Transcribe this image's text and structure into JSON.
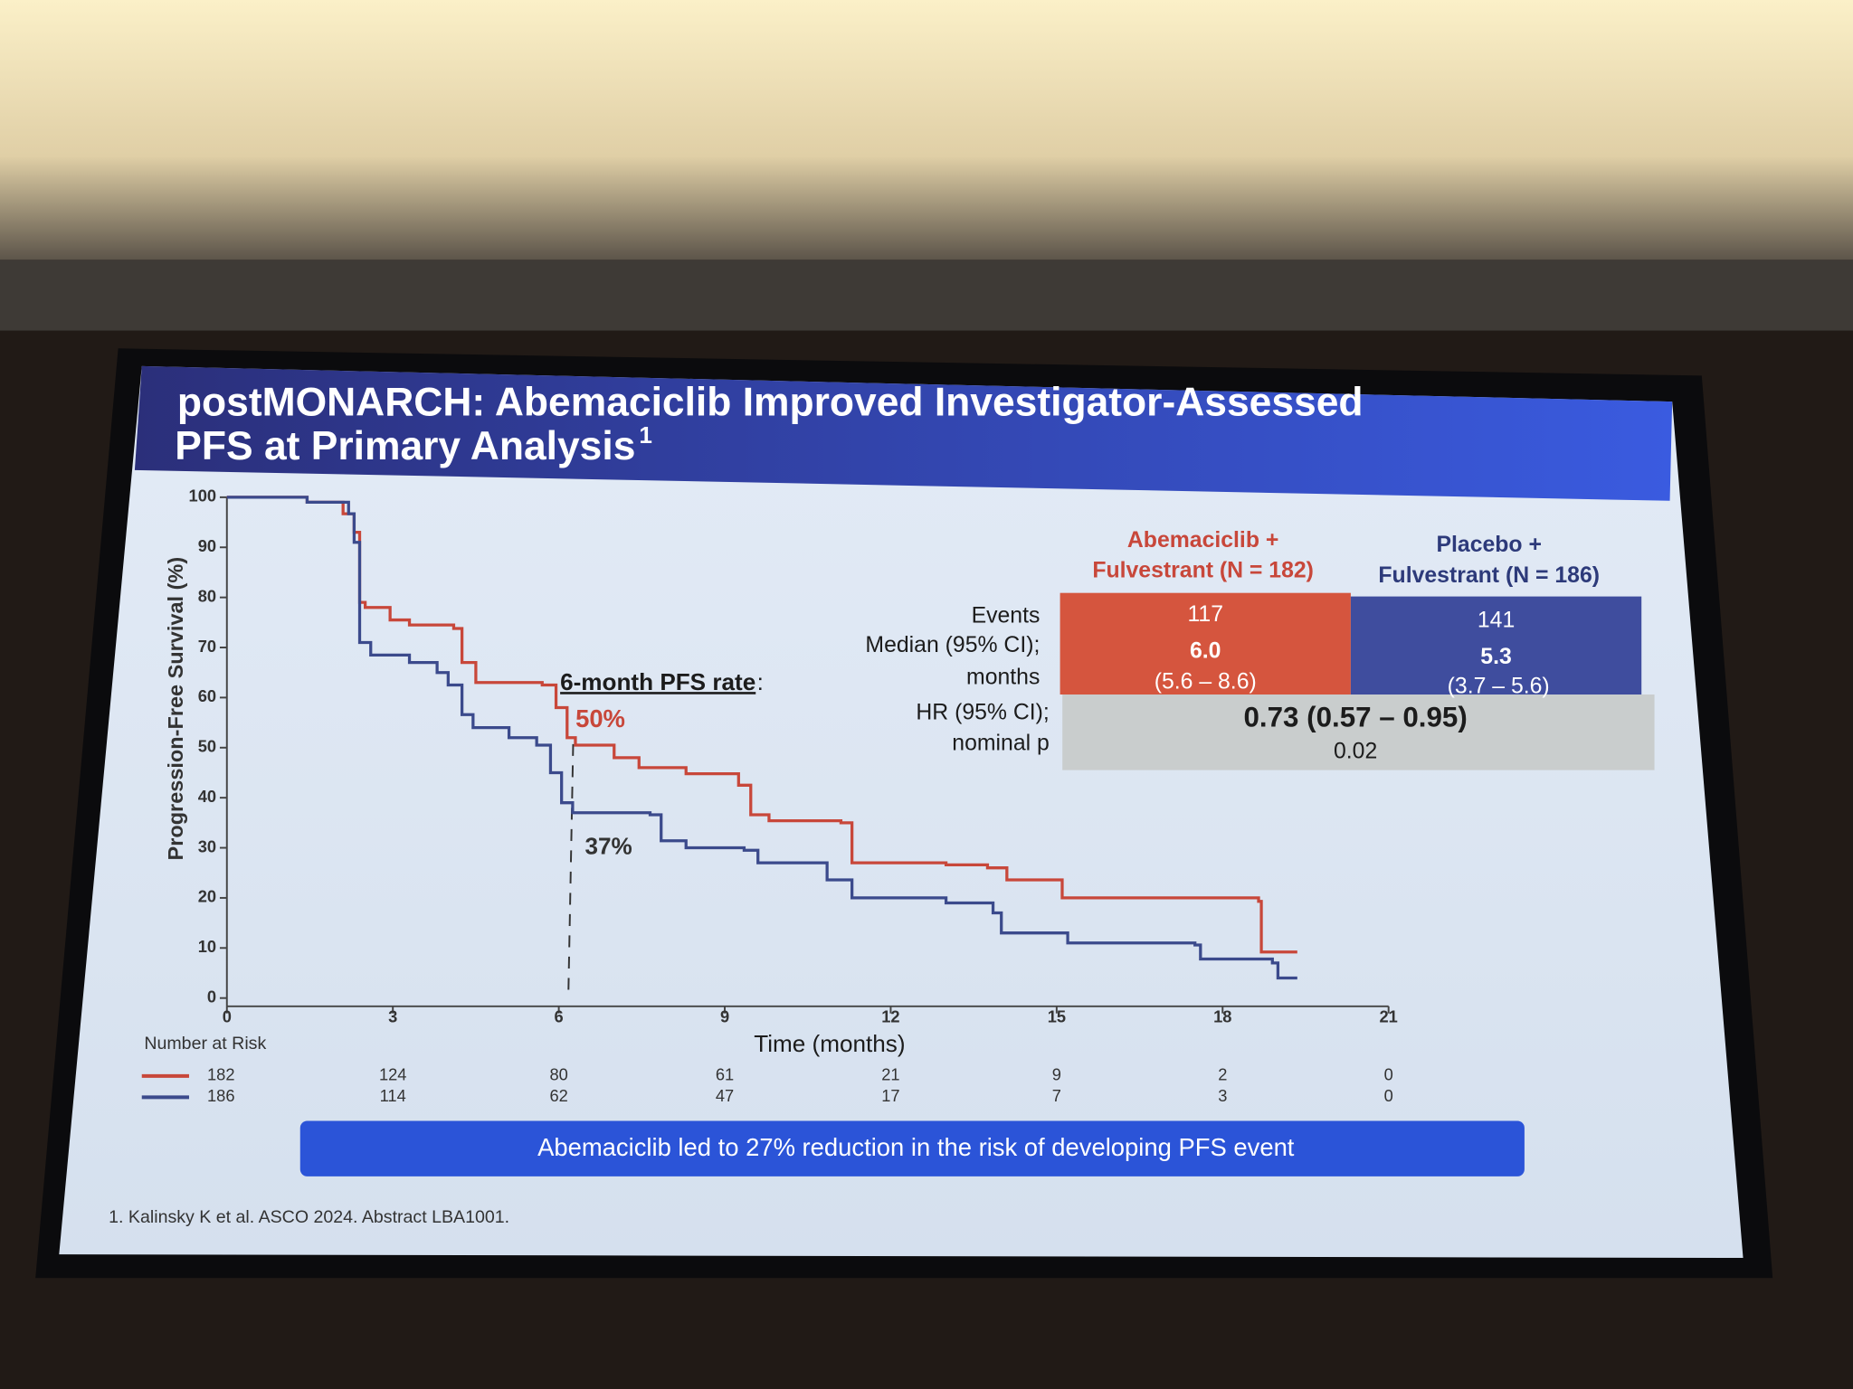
{
  "chart_data": {
    "type": "line",
    "title": [
      "postMONARCH: Abemaciclib Improved Investigator-Assessed",
      "PFS at Primary Analysis"
    ],
    "title_superscript": "1",
    "ylabel": "Progression-Free Survival (%)",
    "xlabel": "Time (months)",
    "xlim": [
      0,
      21
    ],
    "xticks": [
      0,
      3,
      6,
      9,
      12,
      15,
      18,
      21
    ],
    "ylim": [
      0,
      100
    ],
    "yticks": [
      0,
      10,
      20,
      30,
      40,
      50,
      60,
      70,
      80,
      90,
      100
    ],
    "step": true,
    "series": [
      {
        "color": "#c8473a",
        "x": [
          0,
          0.64,
          1.45,
          2.1,
          2.3,
          2.4,
          2.5,
          2.95,
          3.3,
          4.1,
          4.25,
          4.5,
          5.7,
          5.95,
          6.15,
          6.3,
          7.0,
          7.45,
          8.3,
          9.25,
          9.47,
          9.8,
          11.1,
          11.3,
          13.0,
          13.75,
          14.1,
          15.1,
          18.65,
          18.7,
          19.35
        ],
        "values": [
          100,
          100,
          99,
          96.7,
          93,
          79,
          78,
          75.5,
          74.5,
          73.8,
          67,
          63,
          62.5,
          58,
          52,
          50.5,
          48,
          46,
          44.8,
          42.5,
          36.6,
          35.4,
          35,
          27,
          26.6,
          26,
          23.6,
          20,
          19.3,
          9.2,
          9.2
        ]
      },
      {
        "color": "#3b4a8c",
        "x": [
          0,
          0.64,
          1.45,
          2.2,
          2.3,
          2.4,
          2.6,
          3.3,
          3.8,
          4.0,
          4.25,
          4.45,
          5.1,
          5.6,
          5.85,
          6.05,
          6.25,
          7.65,
          7.85,
          8.3,
          9.35,
          9.6,
          10.85,
          11.3,
          13.0,
          13.85,
          14.0,
          15.2,
          17.5,
          17.6,
          18.9,
          19.0,
          19.35
        ],
        "values": [
          100,
          100,
          99,
          96.7,
          91,
          71,
          68.5,
          67,
          65,
          62.5,
          56.6,
          54,
          52,
          50.5,
          45,
          39,
          37,
          36.6,
          31.4,
          30,
          29.5,
          27,
          23.6,
          20,
          19,
          17,
          13,
          11,
          10.6,
          7.8,
          7,
          4,
          4
        ]
      }
    ],
    "annotations": {
      "pfs_label": "6-month PFS rate",
      "colon": ":",
      "red_rate": "50%",
      "blue_rate": "37%"
    },
    "risk_table": {
      "title": "Number at Risk",
      "rows": [
        [
          "182",
          "124",
          "80",
          "61",
          "21",
          "9",
          "2",
          "0"
        ],
        [
          "186",
          "114",
          "62",
          "47",
          "17",
          "7",
          "3",
          "0"
        ]
      ]
    },
    "summary_table": {
      "headers": [
        [
          "Abemaciclib +",
          "Fulvestrant (N = 182)"
        ],
        [
          "Placebo +",
          "Fulvestrant (N = 186)"
        ]
      ],
      "row_labels": [
        "Events",
        "Median (95% CI);",
        "months",
        "HR (95% CI);",
        "nominal p"
      ],
      "events": [
        "117",
        "141"
      ],
      "medians": [
        "6.0",
        "5.3"
      ],
      "cis": [
        "(5.6 – 8.6)",
        "(3.7 – 5.6)"
      ],
      "hr": "0.73 (0.57 – 0.95)",
      "p": "0.02"
    },
    "banner": "Abemaciclib led to 27% reduction in the risk of developing PFS event",
    "footnote": "1. Kalinsky K et al. ASCO 2024. Abstract LBA1001."
  }
}
